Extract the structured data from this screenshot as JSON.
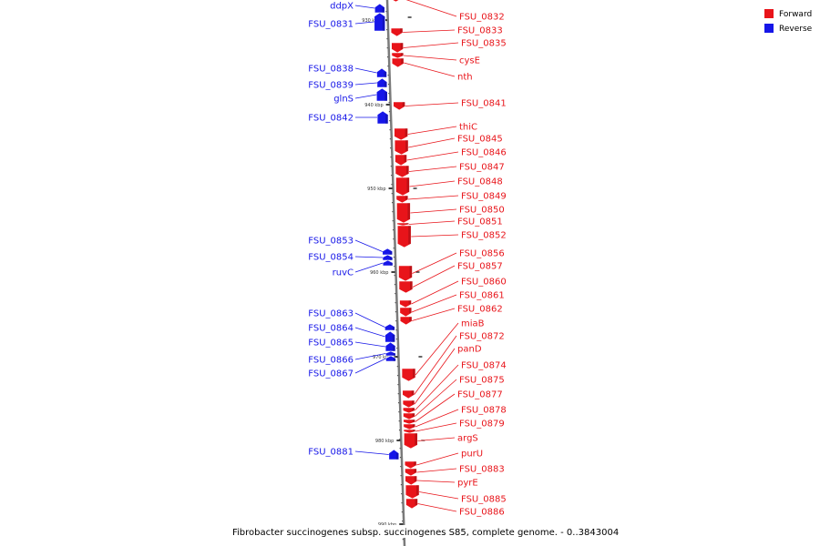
{
  "colors": {
    "forward": "#e8141a",
    "reverse": "#1616e8",
    "backbone": "#7a7a7a"
  },
  "legend": [
    {
      "label": "Forward",
      "color": "#e8141a"
    },
    {
      "label": "Reverse",
      "color": "#1616e8"
    }
  ],
  "caption": "Fibrobacter succinogenes subsp. succinogenes S85, complete genome. - 0..3843004",
  "ticks": [
    {
      "label": "930 kbp",
      "kbp": 930
    },
    {
      "label": "940 kbp",
      "kbp": 940
    },
    {
      "label": "950 kbp",
      "kbp": 950
    },
    {
      "label": "960 kbp",
      "kbp": 960
    },
    {
      "label": "970 kbp",
      "kbp": 970
    },
    {
      "label": "980 kbp",
      "kbp": 980
    },
    {
      "label": "990 kbp",
      "kbp": 990
    }
  ],
  "reverse_genes": [
    {
      "name": "ddpX"
    },
    {
      "name": "FSU_0831"
    },
    {
      "name": "FSU_0838"
    },
    {
      "name": "FSU_0839"
    },
    {
      "name": "glnS"
    },
    {
      "name": "FSU_0842"
    },
    {
      "name": "FSU_0853"
    },
    {
      "name": "FSU_0854"
    },
    {
      "name": "ruvC"
    },
    {
      "name": "FSU_0863"
    },
    {
      "name": "FSU_0864"
    },
    {
      "name": "FSU_0865"
    },
    {
      "name": "FSU_0866"
    },
    {
      "name": "FSU_0867"
    },
    {
      "name": "FSU_0881"
    }
  ],
  "forward_genes": [
    {
      "name": "FSU_0832"
    },
    {
      "name": "FSU_0833"
    },
    {
      "name": "FSU_0835"
    },
    {
      "name": "cysE"
    },
    {
      "name": "nth"
    },
    {
      "name": "FSU_0841"
    },
    {
      "name": "thiC"
    },
    {
      "name": "FSU_0845"
    },
    {
      "name": "FSU_0846"
    },
    {
      "name": "FSU_0847"
    },
    {
      "name": "FSU_0848"
    },
    {
      "name": "FSU_0849"
    },
    {
      "name": "FSU_0850"
    },
    {
      "name": "FSU_0851"
    },
    {
      "name": "FSU_0852"
    },
    {
      "name": "FSU_0856"
    },
    {
      "name": "FSU_0857"
    },
    {
      "name": "FSU_0860"
    },
    {
      "name": "FSU_0861"
    },
    {
      "name": "FSU_0862"
    },
    {
      "name": "miaB"
    },
    {
      "name": "FSU_0872"
    },
    {
      "name": "panD"
    },
    {
      "name": "FSU_0874"
    },
    {
      "name": "FSU_0875"
    },
    {
      "name": "FSU_0877"
    },
    {
      "name": "FSU_0878"
    },
    {
      "name": "FSU_0879"
    },
    {
      "name": "argS"
    },
    {
      "name": "purU"
    },
    {
      "name": "FSU_0883"
    },
    {
      "name": "pyrE"
    },
    {
      "name": "FSU_0885"
    },
    {
      "name": "FSU_0886"
    }
  ]
}
